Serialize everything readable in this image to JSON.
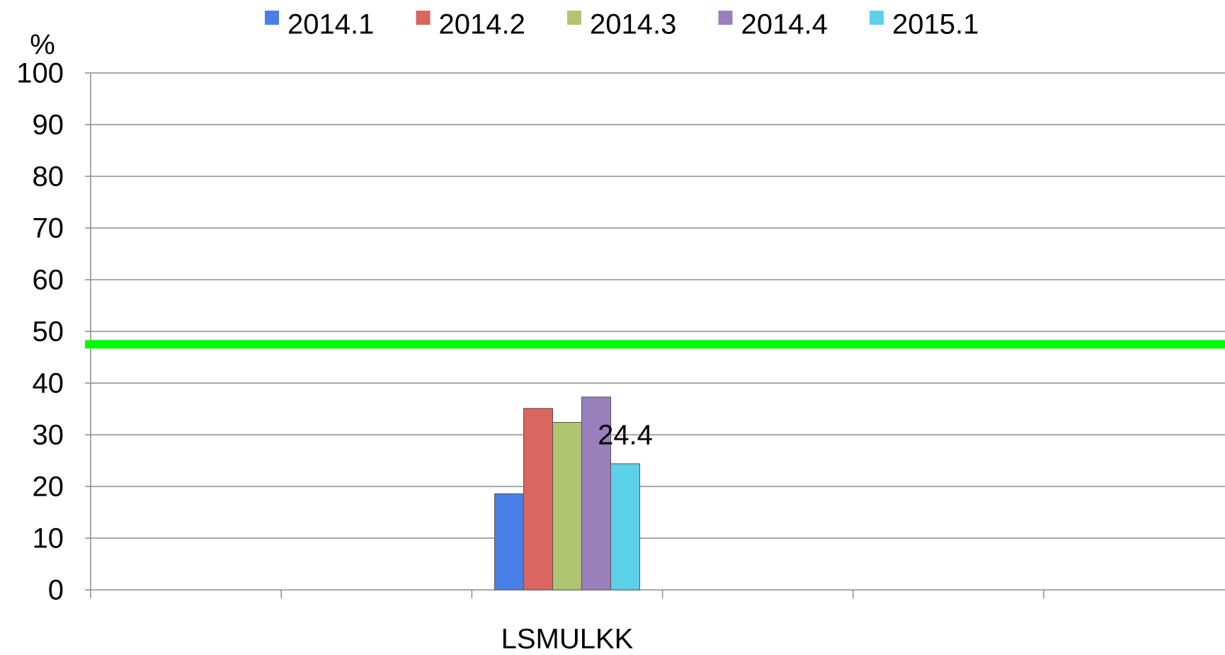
{
  "chart_data": {
    "type": "bar",
    "y_label": "%",
    "categories": [
      null,
      null,
      "LSMULKK",
      null,
      null,
      null
    ],
    "series": [
      {
        "name": "2014.1",
        "color": "#4a7ee8",
        "values": [
          null,
          null,
          18.6,
          null,
          null,
          null
        ]
      },
      {
        "name": "2014.2",
        "color": "#d9665f",
        "values": [
          null,
          null,
          35.1,
          null,
          null,
          null
        ]
      },
      {
        "name": "2014.3",
        "color": "#adc66f",
        "values": [
          null,
          null,
          32.4,
          null,
          null,
          null
        ]
      },
      {
        "name": "2014.4",
        "color": "#9a80bb",
        "values": [
          null,
          null,
          37.3,
          null,
          null,
          null
        ]
      },
      {
        "name": "2015.1",
        "color": "#5dd0ea",
        "values": [
          null,
          null,
          24.4,
          null,
          null,
          null
        ],
        "show_labels": true
      }
    ],
    "reference_line": {
      "value": 47.5,
      "color": "#00ff00"
    },
    "ylim": [
      0,
      100
    ],
    "yticks": [
      0,
      10,
      20,
      30,
      40,
      50,
      60,
      70,
      80,
      90,
      100
    ],
    "grid": true,
    "legend": "top"
  }
}
